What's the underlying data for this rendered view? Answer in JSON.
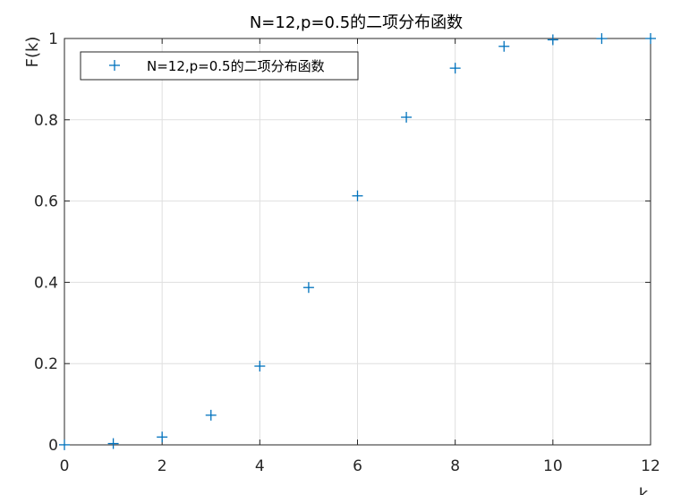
{
  "chart_data": {
    "type": "scatter",
    "title": "N=12,p=0.5的二项分布函数",
    "xlabel": "k",
    "ylabel": "F(k)",
    "xlim": [
      0,
      12
    ],
    "ylim": [
      0,
      1
    ],
    "xticks": [
      "0",
      "2",
      "4",
      "6",
      "8",
      "10",
      "12"
    ],
    "yticks": [
      "0",
      "0.2",
      "0.4",
      "0.6",
      "0.8",
      "1"
    ],
    "grid": true,
    "legend_position": "top-left",
    "marker": "+",
    "series": [
      {
        "name": "N=12,p=0.5的二项分布函数",
        "color": "#0072bd",
        "x": [
          0,
          1,
          2,
          3,
          4,
          5,
          6,
          7,
          8,
          9,
          10,
          11,
          12
        ],
        "y": [
          0.0002,
          0.0032,
          0.0193,
          0.073,
          0.1938,
          0.3872,
          0.6128,
          0.8062,
          0.927,
          0.9807,
          0.9968,
          0.9998,
          1.0
        ]
      }
    ]
  }
}
